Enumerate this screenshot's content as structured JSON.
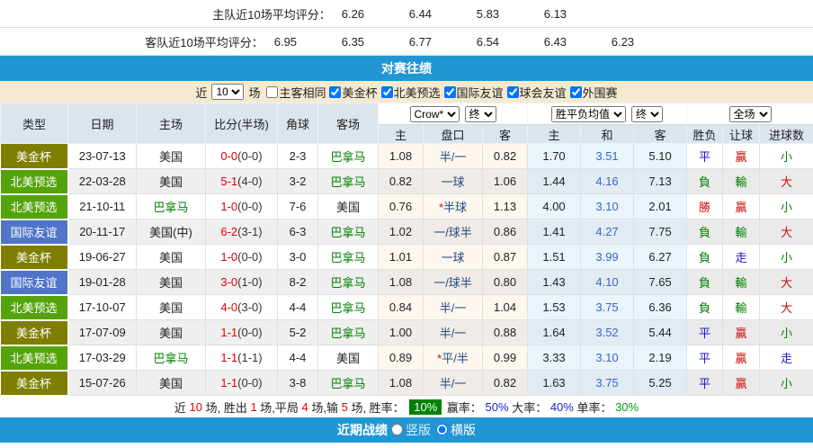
{
  "colors": {
    "accent_blue": "#2196d3",
    "filter_bg": "#f5ead0",
    "header_bg": "#dce4ec",
    "type_olive": "#7e7e00",
    "type_green": "#54a30a",
    "type_blue": "#5075c8",
    "score_red": "#e60000",
    "team_green": "#008000",
    "draw_odds_blue": "#3366cc",
    "badge_green": "#008000"
  },
  "ratings": {
    "home": {
      "label": "主队近10场平均评分：",
      "values": [
        "6.26",
        "6.44",
        "5.83",
        "6.13"
      ]
    },
    "away": {
      "label": "客队近10场平均评分：",
      "values": [
        "6.95",
        "6.35",
        "6.77",
        "6.54",
        "6.43",
        "6.23"
      ]
    }
  },
  "section": {
    "title": "对赛往绩"
  },
  "filter": {
    "prefix": "近",
    "count": "10",
    "suffix": "场",
    "options": [
      {
        "label": "主客相同",
        "checked": false
      },
      {
        "label": "美金杯",
        "checked": true
      },
      {
        "label": "北美预选",
        "checked": true
      },
      {
        "label": "国际友谊",
        "checked": true
      },
      {
        "label": "球会友谊",
        "checked": true
      },
      {
        "label": "外围赛",
        "checked": true
      }
    ]
  },
  "table": {
    "base_headers": [
      "类型",
      "日期",
      "主场",
      "比分(半场)",
      "角球",
      "客场"
    ],
    "asian_group": {
      "selects": [
        {
          "name": "odds-provider-select",
          "value": "Crow*"
        },
        {
          "name": "asian-period-select",
          "value": "终"
        }
      ],
      "subs": [
        "主",
        "盘口",
        "客"
      ]
    },
    "euro_group": {
      "selects": [
        {
          "name": "euro-odds-select",
          "value": "胜平负均值"
        },
        {
          "name": "euro-period-select",
          "value": "终"
        }
      ],
      "subs": [
        "主",
        "和",
        "客"
      ]
    },
    "result_group": {
      "selects": [
        {
          "name": "scope-select",
          "value": "全场"
        }
      ],
      "subs": [
        "胜负",
        "让球",
        "进球数"
      ]
    },
    "rows": [
      {
        "type": "美金杯",
        "type_style": "olive",
        "date": "23-07-13",
        "home": "美国",
        "home_style": "black",
        "score": "0-0",
        "half": "(0-0)",
        "corners": "2-3",
        "away": "巴拿马",
        "away_style": "green",
        "asian_home": "1.08",
        "handicap_star": "",
        "handicap": "半/一",
        "asian_away": "0.82",
        "euro_home": "1.70",
        "euro_draw": "3.51",
        "euro_away": "5.10",
        "result": [
          {
            "t": "平",
            "c": "blue"
          },
          {
            "t": "贏",
            "c": "red"
          },
          {
            "t": "小",
            "c": "green"
          }
        ]
      },
      {
        "type": "北美预选",
        "type_style": "green",
        "date": "22-03-28",
        "home": "美国",
        "home_style": "black",
        "score": "5-1",
        "half": "(4-0)",
        "corners": "3-2",
        "away": "巴拿马",
        "away_style": "green",
        "asian_home": "0.82",
        "handicap_star": "",
        "handicap": "一球",
        "asian_away": "1.06",
        "euro_home": "1.44",
        "euro_draw": "4.16",
        "euro_away": "7.13",
        "result": [
          {
            "t": "負",
            "c": "green"
          },
          {
            "t": "輸",
            "c": "green"
          },
          {
            "t": "大",
            "c": "red"
          }
        ]
      },
      {
        "type": "北美预选",
        "type_style": "green",
        "date": "21-10-11",
        "home": "巴拿马",
        "home_style": "green",
        "score": "1-0",
        "half": "(0-0)",
        "corners": "7-6",
        "away": "美国",
        "away_style": "black",
        "asian_home": "0.76",
        "handicap_star": "*",
        "handicap": "半球",
        "asian_away": "1.13",
        "euro_home": "4.00",
        "euro_draw": "3.10",
        "euro_away": "2.01",
        "result": [
          {
            "t": "勝",
            "c": "red"
          },
          {
            "t": "贏",
            "c": "red"
          },
          {
            "t": "小",
            "c": "green"
          }
        ]
      },
      {
        "type": "国际友谊",
        "type_style": "blue",
        "date": "20-11-17",
        "home": "美国(中)",
        "home_style": "black",
        "score": "6-2",
        "half": "(3-1)",
        "corners": "6-3",
        "away": "巴拿马",
        "away_style": "green",
        "asian_home": "1.02",
        "handicap_star": "",
        "handicap": "一/球半",
        "asian_away": "0.86",
        "euro_home": "1.41",
        "euro_draw": "4.27",
        "euro_away": "7.75",
        "result": [
          {
            "t": "負",
            "c": "green"
          },
          {
            "t": "輸",
            "c": "green"
          },
          {
            "t": "大",
            "c": "red"
          }
        ]
      },
      {
        "type": "美金杯",
        "type_style": "olive",
        "date": "19-06-27",
        "home": "美国",
        "home_style": "black",
        "score": "1-0",
        "half": "(0-0)",
        "corners": "3-0",
        "away": "巴拿马",
        "away_style": "green",
        "asian_home": "1.01",
        "handicap_star": "",
        "handicap": "一球",
        "asian_away": "0.87",
        "euro_home": "1.51",
        "euro_draw": "3.99",
        "euro_away": "6.27",
        "result": [
          {
            "t": "負",
            "c": "green"
          },
          {
            "t": "走",
            "c": "blue"
          },
          {
            "t": "小",
            "c": "green"
          }
        ]
      },
      {
        "type": "国际友谊",
        "type_style": "blue",
        "date": "19-01-28",
        "home": "美国",
        "home_style": "black",
        "score": "3-0",
        "half": "(1-0)",
        "corners": "8-2",
        "away": "巴拿马",
        "away_style": "green",
        "asian_home": "1.08",
        "handicap_star": "",
        "handicap": "一/球半",
        "asian_away": "0.80",
        "euro_home": "1.43",
        "euro_draw": "4.10",
        "euro_away": "7.65",
        "result": [
          {
            "t": "負",
            "c": "green"
          },
          {
            "t": "輸",
            "c": "green"
          },
          {
            "t": "大",
            "c": "red"
          }
        ]
      },
      {
        "type": "北美预选",
        "type_style": "green",
        "date": "17-10-07",
        "home": "美国",
        "home_style": "black",
        "score": "4-0",
        "half": "(3-0)",
        "corners": "4-4",
        "away": "巴拿马",
        "away_style": "green",
        "asian_home": "0.84",
        "handicap_star": "",
        "handicap": "半/一",
        "asian_away": "1.04",
        "euro_home": "1.53",
        "euro_draw": "3.75",
        "euro_away": "6.36",
        "result": [
          {
            "t": "負",
            "c": "green"
          },
          {
            "t": "輸",
            "c": "green"
          },
          {
            "t": "大",
            "c": "red"
          }
        ]
      },
      {
        "type": "美金杯",
        "type_style": "olive",
        "date": "17-07-09",
        "home": "美国",
        "home_style": "black",
        "score": "1-1",
        "half": "(0-0)",
        "corners": "5-2",
        "away": "巴拿马",
        "away_style": "green",
        "asian_home": "1.00",
        "handicap_star": "",
        "handicap": "半/一",
        "asian_away": "0.88",
        "euro_home": "1.64",
        "euro_draw": "3.52",
        "euro_away": "5.44",
        "result": [
          {
            "t": "平",
            "c": "blue"
          },
          {
            "t": "贏",
            "c": "red"
          },
          {
            "t": "小",
            "c": "green"
          }
        ]
      },
      {
        "type": "北美预选",
        "type_style": "green",
        "date": "17-03-29",
        "home": "巴拿马",
        "home_style": "green",
        "score": "1-1",
        "half": "(1-1)",
        "corners": "4-4",
        "away": "美国",
        "away_style": "black",
        "asian_home": "0.89",
        "handicap_star": "*",
        "handicap": "平/半",
        "asian_away": "0.99",
        "euro_home": "3.33",
        "euro_draw": "3.10",
        "euro_away": "2.19",
        "result": [
          {
            "t": "平",
            "c": "blue"
          },
          {
            "t": "贏",
            "c": "red"
          },
          {
            "t": "走",
            "c": "blue"
          }
        ]
      },
      {
        "type": "美金杯",
        "type_style": "olive",
        "date": "15-07-26",
        "home": "美国",
        "home_style": "black",
        "score": "1-1",
        "half": "(0-0)",
        "corners": "3-8",
        "away": "巴拿马",
        "away_style": "green",
        "asian_home": "1.08",
        "handicap_star": "",
        "handicap": "半/一",
        "asian_away": "0.82",
        "euro_home": "1.63",
        "euro_draw": "3.75",
        "euro_away": "5.25",
        "result": [
          {
            "t": "平",
            "c": "blue"
          },
          {
            "t": "贏",
            "c": "red"
          },
          {
            "t": "小",
            "c": "green"
          }
        ]
      }
    ]
  },
  "summary": {
    "segments": [
      {
        "text": "近 "
      },
      {
        "text": "10",
        "color": "red"
      },
      {
        "text": " 场, 胜出 "
      },
      {
        "text": "1",
        "color": "red"
      },
      {
        "text": " 场,平局 "
      },
      {
        "text": "4",
        "color": "red"
      },
      {
        "text": " 场,输 "
      },
      {
        "text": "5",
        "color": "red"
      },
      {
        "text": " 场, 胜率： "
      },
      {
        "text": "10%",
        "badge": true
      },
      {
        "text": " 赢率： "
      },
      {
        "text": "50%",
        "color": "blue"
      },
      {
        "text": " 大率： "
      },
      {
        "text": "40%",
        "color": "blue"
      },
      {
        "text": " 单率： "
      },
      {
        "text": "30%",
        "color": "green"
      }
    ]
  },
  "footer": {
    "title": "近期战绩",
    "options": [
      {
        "label": "竖版",
        "checked": false
      },
      {
        "label": "横版",
        "checked": true
      }
    ]
  }
}
